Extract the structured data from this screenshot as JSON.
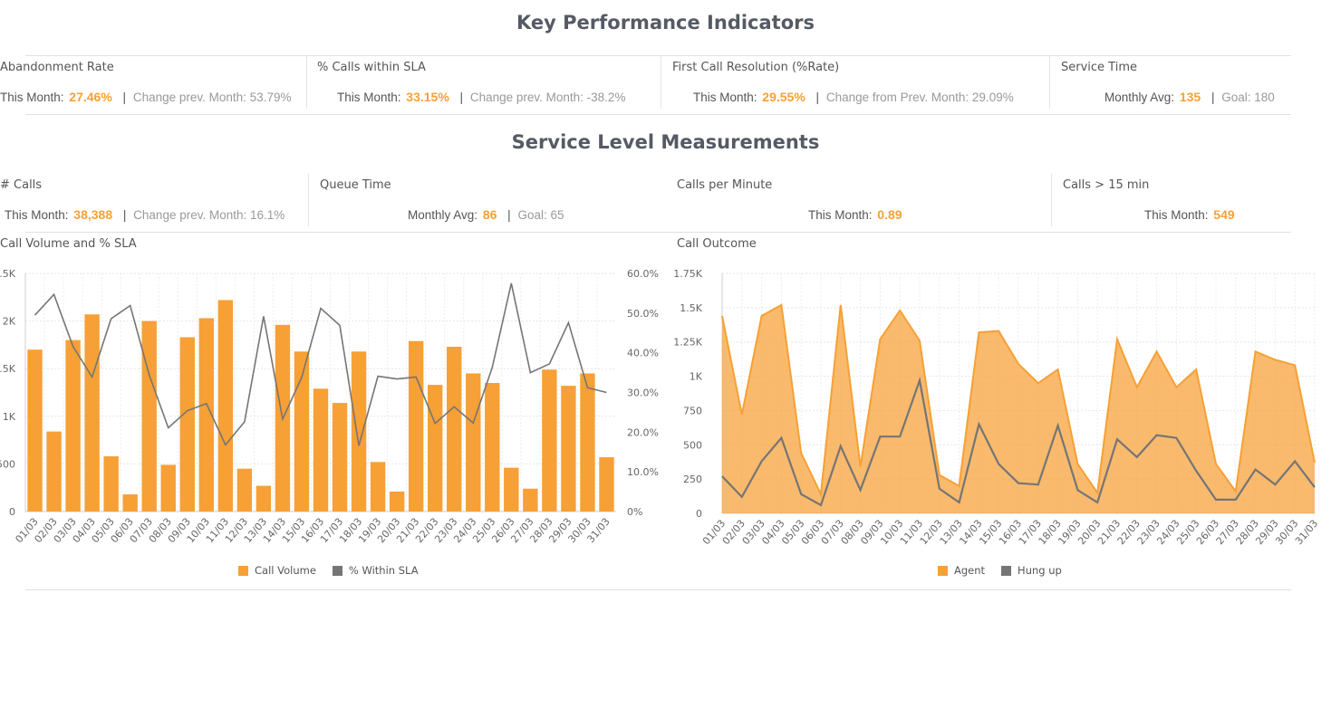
{
  "sections": {
    "kpi_title": "Key Performance Indicators",
    "slm_title": "Service Level Measurements"
  },
  "kpi": [
    {
      "label": "Abandonment Rate",
      "lbl1": "This Month:",
      "val": "27.46%",
      "lbl2": "Change prev. Month:",
      "val2": "53.79%"
    },
    {
      "label": "% Calls within SLA",
      "lbl1": "This Month:",
      "val": "33.15%",
      "lbl2": "Change prev. Month:",
      "val2": "-38.2%"
    },
    {
      "label": "First Call Resolution (%Rate)",
      "lbl1": "This Month:",
      "val": "29.55%",
      "lbl2": "Change from Prev. Month:",
      "val2": "29.09%"
    },
    {
      "label": "Service Time",
      "lbl1": "Monthly Avg:",
      "val": "135",
      "lbl2": "Goal:",
      "val2": "180"
    }
  ],
  "slm": [
    {
      "label": "# Calls",
      "lbl1": "This Month:",
      "val": "38,388",
      "lbl2": "Change prev. Month:",
      "val2": "16.1%"
    },
    {
      "label": "Queue Time",
      "lbl1": "Monthly Avg:",
      "val": "86",
      "lbl2": "Goal:",
      "val2": "65"
    },
    {
      "label": "Calls per Minute",
      "lbl1": "This Month:",
      "val": "0.89"
    },
    {
      "label": "Calls > 15 min",
      "lbl1": "This Month:",
      "val": "549"
    }
  ],
  "colors": {
    "accent": "#f7a035",
    "gray_series": "#757575"
  },
  "chart_data": [
    {
      "type": "bar",
      "title": "Call Volume and % SLA",
      "categories": [
        "01/03",
        "02/03",
        "03/03",
        "04/03",
        "05/03",
        "06/03",
        "07/03",
        "08/03",
        "09/03",
        "10/03",
        "11/03",
        "12/03",
        "13/03",
        "14/03",
        "15/03",
        "16/03",
        "17/03",
        "18/03",
        "19/03",
        "20/03",
        "21/03",
        "22/03",
        "23/03",
        "24/03",
        "25/03",
        "26/03",
        "27/03",
        "28/03",
        "29/03",
        "30/03",
        "31/03"
      ],
      "yticks": [
        "0",
        "500",
        "1K",
        "1.5K",
        "2K",
        "2.5K"
      ],
      "y2ticks": [
        "0%",
        "10.0%",
        "20.0%",
        "30.0%",
        "40.0%",
        "50.0%",
        "60.0%"
      ],
      "ylim": [
        0,
        2500
      ],
      "y2lim": [
        0,
        60
      ],
      "grid": true,
      "legend_position": "bottom",
      "series": [
        {
          "name": "Call Volume",
          "kind": "bar",
          "axis": "left",
          "values": [
            1700,
            840,
            1800,
            2070,
            580,
            180,
            2000,
            490,
            1830,
            2030,
            2220,
            450,
            270,
            1960,
            1680,
            1290,
            1140,
            1680,
            520,
            210,
            1790,
            1330,
            1730,
            1450,
            1350,
            460,
            240,
            1490,
            1320,
            1450,
            570
          ]
        },
        {
          "name": "% Within SLA",
          "kind": "line",
          "axis": "right",
          "values": [
            49.5,
            54.7,
            41.6,
            33.9,
            48.6,
            51.9,
            34.4,
            21.1,
            25.4,
            27.2,
            16.8,
            22.6,
            49.2,
            23.3,
            33.8,
            51.2,
            46.9,
            16.6,
            34.1,
            33.4,
            33.9,
            22.2,
            26.4,
            22.3,
            36.3,
            57.5,
            35.0,
            37.2,
            47.6,
            31.2,
            30.0
          ]
        }
      ]
    },
    {
      "type": "area",
      "title": "Call Outcome",
      "categories": [
        "01/03",
        "02/03",
        "03/03",
        "04/03",
        "05/03",
        "06/03",
        "07/03",
        "08/03",
        "09/03",
        "10/03",
        "11/03",
        "12/03",
        "13/03",
        "14/03",
        "15/03",
        "16/03",
        "17/03",
        "18/03",
        "19/03",
        "20/03",
        "21/03",
        "22/03",
        "23/03",
        "24/03",
        "25/03",
        "26/03",
        "27/03",
        "28/03",
        "29/03",
        "30/03",
        "31/03"
      ],
      "yticks": [
        "0",
        "250",
        "500",
        "750",
        "1K",
        "1.25K",
        "1.5K",
        "1.75K"
      ],
      "ylim": [
        0,
        1750
      ],
      "grid": true,
      "legend_position": "bottom",
      "series": [
        {
          "name": "Agent",
          "kind": "area",
          "values": [
            1440,
            720,
            1440,
            1520,
            440,
            140,
            1520,
            340,
            1270,
            1480,
            1260,
            280,
            200,
            1320,
            1330,
            1090,
            950,
            1050,
            360,
            150,
            1270,
            920,
            1180,
            920,
            1050,
            360,
            160,
            1180,
            1120,
            1080,
            370
          ]
        },
        {
          "name": "Hung up",
          "kind": "line",
          "values": [
            270,
            120,
            380,
            550,
            140,
            60,
            490,
            170,
            560,
            560,
            970,
            180,
            80,
            650,
            360,
            220,
            210,
            640,
            170,
            80,
            540,
            410,
            570,
            550,
            310,
            100,
            100,
            320,
            210,
            380,
            190
          ]
        }
      ]
    }
  ]
}
